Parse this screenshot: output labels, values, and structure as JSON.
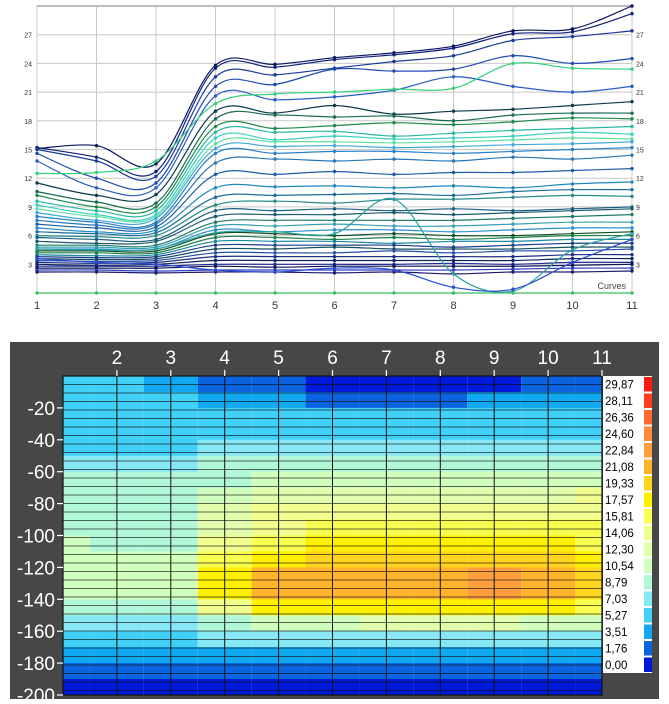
{
  "chart_data": [
    {
      "type": "line",
      "x": [
        1,
        2,
        3,
        4,
        5,
        6,
        7,
        8,
        9,
        10,
        11
      ],
      "xlim": [
        1,
        11
      ],
      "ylim": [
        0,
        30
      ],
      "yticks": [
        3,
        6,
        9,
        12,
        15,
        18,
        21,
        24,
        27
      ],
      "grid": true,
      "annotation": "Curves",
      "series": [
        {
          "values": [
            15.1,
            15.4,
            13.5,
            23.8,
            23.9,
            24.6,
            25.1,
            25.8,
            27.4,
            27.6,
            30.0
          ],
          "color": "#0a1560"
        },
        {
          "values": [
            15.2,
            14.2,
            12.7,
            23.5,
            23.6,
            24.4,
            24.9,
            25.6,
            27.1,
            27.3,
            29.2
          ],
          "color": "#10207a"
        },
        {
          "values": [
            15.0,
            13.8,
            12.2,
            22.6,
            22.8,
            23.5,
            24.2,
            24.8,
            26.4,
            26.8,
            27.4
          ],
          "color": "#1a3a9a"
        },
        {
          "values": [
            14.6,
            12.0,
            11.5,
            21.6,
            21.8,
            23.4,
            23.2,
            23.4,
            24.8,
            24.0,
            24.5
          ],
          "color": "#1e4ab0"
        },
        {
          "values": [
            13.8,
            11.0,
            11.0,
            20.6,
            20.2,
            20.5,
            21.2,
            22.6,
            21.6,
            21.0,
            21.6
          ],
          "color": "#2a5cc2"
        },
        {
          "values": [
            12.5,
            12.6,
            13.8,
            19.8,
            20.8,
            21.0,
            21.3,
            21.4,
            24.0,
            23.5,
            23.4
          ],
          "color": "#33d27a"
        },
        {
          "values": [
            11.5,
            10.2,
            10.3,
            19.0,
            18.8,
            19.6,
            18.7,
            19.0,
            19.2,
            19.6,
            20.0
          ],
          "color": "#0d3a4d"
        },
        {
          "values": [
            10.6,
            9.5,
            9.4,
            18.2,
            18.6,
            18.4,
            18.5,
            18.0,
            18.6,
            18.8,
            18.8
          ],
          "color": "#1a6a50"
        },
        {
          "values": [
            10.2,
            9.0,
            9.0,
            17.4,
            17.2,
            17.5,
            17.8,
            17.6,
            17.9,
            18.3,
            18.2
          ],
          "color": "#1d8a4a"
        },
        {
          "values": [
            9.6,
            8.6,
            8.6,
            16.8,
            16.8,
            16.9,
            16.4,
            16.7,
            17.0,
            17.2,
            17.4
          ],
          "color": "#28b8a0"
        },
        {
          "values": [
            9.2,
            8.2,
            8.2,
            16.2,
            16.0,
            16.4,
            16.1,
            16.2,
            16.4,
            16.8,
            16.6
          ],
          "color": "#3ad0c0"
        },
        {
          "values": [
            8.8,
            8.0,
            8.0,
            15.6,
            15.8,
            15.8,
            15.7,
            15.8,
            16.0,
            16.2,
            16.1
          ],
          "color": "#5ee0a0"
        },
        {
          "values": [
            8.4,
            7.6,
            7.8,
            15.1,
            15.3,
            15.4,
            15.2,
            15.3,
            15.5,
            15.6,
            15.8
          ],
          "color": "#40a8d8"
        },
        {
          "values": [
            8.0,
            7.4,
            7.4,
            14.6,
            14.6,
            14.8,
            14.8,
            14.6,
            14.8,
            15.0,
            15.2
          ],
          "color": "#2a80c8"
        },
        {
          "values": [
            7.6,
            7.1,
            7.2,
            13.6,
            14.0,
            13.8,
            14.0,
            13.8,
            14.2,
            14.0,
            14.4
          ],
          "color": "#2878b8"
        },
        {
          "values": [
            7.2,
            6.8,
            6.9,
            12.4,
            12.4,
            12.7,
            12.4,
            12.6,
            12.6,
            12.8,
            13.0
          ],
          "color": "#1c5fa8"
        },
        {
          "values": [
            6.8,
            6.4,
            6.6,
            11.0,
            11.1,
            11.2,
            11.0,
            11.2,
            11.0,
            11.4,
            11.6
          ],
          "color": "#2088c0"
        },
        {
          "values": [
            6.4,
            6.2,
            6.3,
            10.0,
            10.2,
            10.3,
            10.4,
            10.2,
            10.6,
            10.8,
            10.8
          ],
          "color": "#1c6e9a"
        },
        {
          "values": [
            6.0,
            5.9,
            6.0,
            9.2,
            9.6,
            9.4,
            9.8,
            9.8,
            10.0,
            10.2,
            10.1
          ],
          "color": "#2a8a8a"
        },
        {
          "values": [
            5.8,
            5.6,
            5.6,
            8.6,
            8.6,
            8.8,
            8.6,
            8.8,
            8.6,
            8.8,
            9.0
          ],
          "color": "#1a6080"
        },
        {
          "values": [
            5.4,
            5.2,
            5.4,
            8.0,
            8.2,
            8.2,
            8.4,
            8.2,
            8.4,
            8.6,
            8.8
          ],
          "color": "#1b5a6e"
        },
        {
          "values": [
            5.0,
            5.0,
            5.0,
            7.4,
            7.6,
            7.6,
            7.6,
            7.6,
            7.8,
            8.0,
            8.2
          ],
          "color": "#1f7a6a"
        },
        {
          "values": [
            4.8,
            4.8,
            4.8,
            7.0,
            7.0,
            7.2,
            7.0,
            7.0,
            7.2,
            7.4,
            7.4
          ],
          "color": "#3aa0b0"
        },
        {
          "values": [
            4.6,
            4.6,
            4.6,
            6.6,
            6.4,
            6.6,
            6.6,
            6.4,
            6.6,
            6.8,
            6.8
          ],
          "color": "#2a90d0"
        },
        {
          "values": [
            4.4,
            4.4,
            4.4,
            6.2,
            6.2,
            6.0,
            6.2,
            6.0,
            6.0,
            6.2,
            6.4
          ],
          "color": "#0f5020"
        },
        {
          "values": [
            4.2,
            4.2,
            4.2,
            5.8,
            5.8,
            5.6,
            5.8,
            5.6,
            5.8,
            6.0,
            6.0
          ],
          "color": "#20804a"
        },
        {
          "values": [
            4.0,
            3.9,
            4.0,
            5.4,
            5.4,
            5.4,
            5.2,
            5.4,
            5.4,
            5.6,
            5.6
          ],
          "color": "#188aa0"
        },
        {
          "values": [
            3.8,
            3.7,
            3.8,
            5.0,
            5.0,
            5.0,
            5.0,
            4.8,
            5.0,
            5.2,
            5.2
          ],
          "color": "#1a3a8a"
        },
        {
          "values": [
            3.6,
            3.5,
            3.6,
            4.6,
            4.6,
            4.8,
            4.6,
            4.6,
            4.6,
            4.8,
            4.8
          ],
          "color": "#164e60"
        },
        {
          "values": [
            3.4,
            3.3,
            3.4,
            4.2,
            4.2,
            4.2,
            4.4,
            4.2,
            4.4,
            4.4,
            4.6
          ],
          "color": "#2450a8"
        },
        {
          "values": [
            3.2,
            3.1,
            3.2,
            3.8,
            3.8,
            3.8,
            3.8,
            3.8,
            3.8,
            4.0,
            4.0
          ],
          "color": "#1c2f80"
        },
        {
          "values": [
            3.0,
            2.9,
            3.0,
            3.4,
            3.4,
            3.4,
            3.4,
            3.4,
            3.4,
            3.6,
            3.6
          ],
          "color": "#0e2660"
        },
        {
          "values": [
            2.8,
            2.8,
            2.8,
            3.0,
            3.0,
            3.0,
            3.0,
            3.1,
            3.0,
            3.2,
            3.2
          ],
          "color": "#202a90"
        },
        {
          "values": [
            2.6,
            2.6,
            2.6,
            2.8,
            2.7,
            2.8,
            2.8,
            2.8,
            2.8,
            2.9,
            3.0
          ],
          "color": "#0a1450"
        },
        {
          "values": [
            2.4,
            2.4,
            2.3,
            2.4,
            2.4,
            2.4,
            2.4,
            2.4,
            2.5,
            2.6,
            2.6
          ],
          "color": "#2e3fc0"
        },
        {
          "values": [
            2.2,
            2.2,
            2.1,
            2.2,
            2.2,
            2.1,
            2.2,
            2.0,
            2.2,
            2.2,
            2.3
          ],
          "color": "#1a1a70"
        },
        {
          "values": [
            4.6,
            4.5,
            4.6,
            6.3,
            6.4,
            6.2,
            9.8,
            2.0,
            0.2,
            4.5,
            6.2
          ],
          "color": "#2aa0a0"
        },
        {
          "values": [
            3.6,
            3.2,
            3.0,
            2.4,
            2.2,
            2.6,
            2.4,
            0.6,
            0.4,
            3.2,
            5.6
          ],
          "color": "#2a4ad0"
        },
        {
          "values": [
            0.0,
            0.0,
            0.0,
            0.0,
            0.0,
            0.0,
            0.0,
            0.0,
            0.0,
            0.0,
            0.0
          ],
          "color": "#38c060"
        }
      ]
    },
    {
      "type": "heatmap",
      "x": [
        1,
        2,
        3,
        4,
        5,
        6,
        7,
        8,
        9,
        10,
        11
      ],
      "xticks": [
        2,
        3,
        4,
        5,
        6,
        7,
        8,
        9,
        10,
        11
      ],
      "y": [
        -10,
        -20,
        -30,
        -40,
        -50,
        -60,
        -70,
        -80,
        -90,
        -100,
        -110,
        -120,
        -130,
        -140,
        -150,
        -160,
        -170,
        -180,
        -190,
        -200
      ],
      "yticks": [
        -20,
        -40,
        -60,
        -80,
        -100,
        -120,
        -140,
        -160,
        -180,
        -200
      ],
      "yrange": [
        0,
        -200
      ],
      "z": [
        [
          5.6,
          5.4,
          5.2,
          2.2,
          2.0,
          1.7,
          1.5,
          1.4,
          1.6,
          3.0,
          3.2
        ],
        [
          6.8,
          6.6,
          6.4,
          4.6,
          4.4,
          3.2,
          3.0,
          3.0,
          3.6,
          4.6,
          4.8
        ],
        [
          6.6,
          6.4,
          6.2,
          6.0,
          5.6,
          5.4,
          5.4,
          5.4,
          5.6,
          5.8,
          5.8
        ],
        [
          6.6,
          6.2,
          6.2,
          6.4,
          6.4,
          6.4,
          6.4,
          6.4,
          6.4,
          6.6,
          6.6
        ],
        [
          7.0,
          7.0,
          7.0,
          7.4,
          7.4,
          7.4,
          7.4,
          7.4,
          7.4,
          7.4,
          7.4
        ],
        [
          8.2,
          8.0,
          8.0,
          9.0,
          9.4,
          9.6,
          9.6,
          9.6,
          9.6,
          9.6,
          9.8
        ],
        [
          9.2,
          9.0,
          9.0,
          10.4,
          11.2,
          11.8,
          12.0,
          12.0,
          12.0,
          12.0,
          12.2
        ],
        [
          10.0,
          9.8,
          9.6,
          12.0,
          13.2,
          13.8,
          14.0,
          14.0,
          14.0,
          14.0,
          14.2
        ],
        [
          10.4,
          9.6,
          9.2,
          12.8,
          14.8,
          15.4,
          15.6,
          15.6,
          15.8,
          15.6,
          15.6
        ],
        [
          10.4,
          9.4,
          9.0,
          13.0,
          15.6,
          16.4,
          16.8,
          16.8,
          16.8,
          16.8,
          16.4
        ],
        [
          10.8,
          10.0,
          10.0,
          14.2,
          17.0,
          17.6,
          18.0,
          18.2,
          18.0,
          18.0,
          17.4
        ],
        [
          11.6,
          11.2,
          11.4,
          16.0,
          18.8,
          19.4,
          19.6,
          19.8,
          20.0,
          19.8,
          19.0
        ],
        [
          11.6,
          11.2,
          11.4,
          17.8,
          21.2,
          21.6,
          21.8,
          22.2,
          23.2,
          22.4,
          20.2
        ],
        [
          11.0,
          10.6,
          10.8,
          17.8,
          22.0,
          22.2,
          22.4,
          22.8,
          23.2,
          22.8,
          20.6
        ],
        [
          10.2,
          9.8,
          9.6,
          14.6,
          18.0,
          18.4,
          18.6,
          18.6,
          18.8,
          18.2,
          17.2
        ],
        [
          8.6,
          8.2,
          8.0,
          10.4,
          11.8,
          12.2,
          12.4,
          12.4,
          12.4,
          12.2,
          11.8
        ],
        [
          6.8,
          6.6,
          6.4,
          7.2,
          7.6,
          7.8,
          7.8,
          7.8,
          7.8,
          7.6,
          7.4
        ],
        [
          5.2,
          5.0,
          5.0,
          5.0,
          5.2,
          5.2,
          5.0,
          5.0,
          5.0,
          5.0,
          4.8
        ],
        [
          3.4,
          3.2,
          3.2,
          3.2,
          3.4,
          3.4,
          3.0,
          3.2,
          3.2,
          3.2,
          3.0
        ],
        [
          1.2,
          1.2,
          1.2,
          1.2,
          1.2,
          1.2,
          0.4,
          1.2,
          1.2,
          1.2,
          1.2
        ]
      ],
      "colorbar": {
        "labels": [
          "29,87",
          "28,11",
          "26,36",
          "24,60",
          "22,84",
          "21,08",
          "19,33",
          "17,57",
          "15,81",
          "14,06",
          "12,30",
          "10,54",
          "8,79",
          "7,03",
          "5,27",
          "3,51",
          "1,76",
          "0,00"
        ],
        "colors": [
          "#ff1a10",
          "#ff3c1e",
          "#ff6a2c",
          "#ff8a38",
          "#ff9e3c",
          "#ffb42e",
          "#ffd41e",
          "#fff000",
          "#f8ff50",
          "#f0ff8e",
          "#e2ffae",
          "#d0ffbe",
          "#b0f8d8",
          "#86e8f4",
          "#40d0f8",
          "#10a8f0",
          "#0a64e0",
          "#0018d8"
        ]
      },
      "levels": [
        0,
        1.76,
        3.51,
        5.27,
        7.03,
        8.79,
        10.54,
        12.3,
        14.06,
        15.81,
        17.57,
        19.33,
        21.08,
        22.84,
        24.6,
        26.36,
        28.11,
        29.87
      ]
    }
  ]
}
